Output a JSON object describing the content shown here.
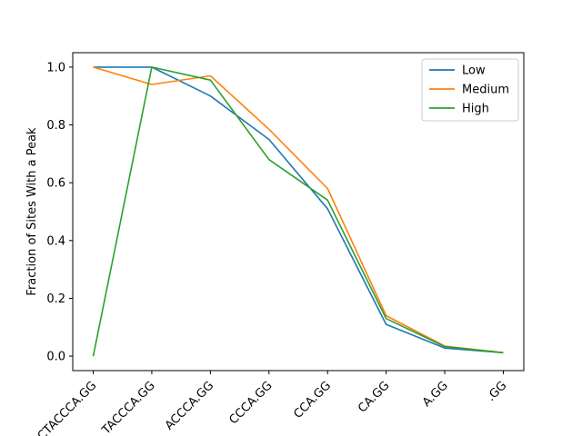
{
  "chart_data": {
    "type": "line",
    "title": "",
    "xlabel": "",
    "ylabel": "Fraction of Sites With a Peak",
    "categories": [
      "CTACCCA.GG",
      "TACCCA.GG",
      "ACCCA.GG",
      "CCCA.GG",
      "CCA.GG",
      "CA.GG",
      "A.GG",
      ".GG"
    ],
    "ylim": [
      -0.05,
      1.05
    ],
    "yticks": [
      0.0,
      0.2,
      0.4,
      0.6,
      0.8,
      1.0
    ],
    "ytick_labels": [
      "0.0",
      "0.2",
      "0.4",
      "0.6",
      "0.8",
      "1.0"
    ],
    "grid": false,
    "legend_position": "top-right",
    "series": [
      {
        "name": "Low",
        "color": "#1f77b4",
        "values": [
          1.0,
          1.0,
          0.9,
          0.75,
          0.51,
          0.11,
          0.028,
          0.012
        ]
      },
      {
        "name": "Medium",
        "color": "#ff7f0e",
        "values": [
          1.0,
          0.94,
          0.97,
          0.785,
          0.58,
          0.14,
          0.035,
          0.012
        ]
      },
      {
        "name": "High",
        "color": "#2ca02c",
        "values": [
          0.0,
          1.0,
          0.955,
          0.68,
          0.54,
          0.13,
          0.033,
          0.012
        ]
      }
    ]
  }
}
